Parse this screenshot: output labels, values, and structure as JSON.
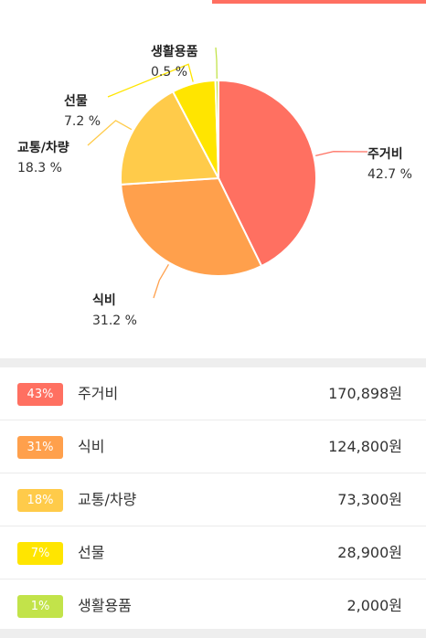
{
  "colors": {
    "accent": "#FF6F61",
    "housing": "#FF7061",
    "food": "#FFA04C",
    "transport": "#FFCB4A",
    "gift": "#FFE500",
    "living": "#C2E34A"
  },
  "chart_data": {
    "type": "pie",
    "slices": [
      {
        "label": "주거비",
        "pct_text": "42.7 %",
        "value": 42.7,
        "color": "#FF7061"
      },
      {
        "label": "식비",
        "pct_text": "31.2 %",
        "value": 31.2,
        "color": "#FFA04C"
      },
      {
        "label": "교통/차량",
        "pct_text": "18.3 %",
        "value": 18.3,
        "color": "#FFCB4A"
      },
      {
        "label": "선물",
        "pct_text": "7.2 %",
        "value": 7.2,
        "color": "#FFE500"
      },
      {
        "label": "생활용품",
        "pct_text": "0.5 %",
        "value": 0.5,
        "color": "#C2E34A"
      }
    ]
  },
  "list": [
    {
      "badge": "43%",
      "category": "주거비",
      "amount": "170,898원",
      "color": "#FF7061"
    },
    {
      "badge": "31%",
      "category": "식비",
      "amount": "124,800원",
      "color": "#FFA04C"
    },
    {
      "badge": "18%",
      "category": "교통/차량",
      "amount": "73,300원",
      "color": "#FFCB4A"
    },
    {
      "badge": "7%",
      "category": "선물",
      "amount": "28,900원",
      "color": "#FFE500"
    },
    {
      "badge": "1%",
      "category": "생활용품",
      "amount": "2,000원",
      "color": "#C2E34A"
    }
  ]
}
